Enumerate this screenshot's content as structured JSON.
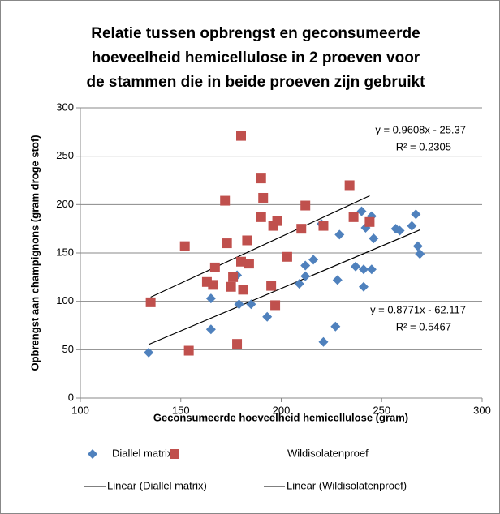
{
  "chart_data": {
    "type": "scatter",
    "title": [
      "Relatie tussen opbrengst en geconsumeerde",
      "hoeveelheid hemicellulose in 2 proeven voor",
      "de stammen die in beide proeven zijn gebruikt"
    ],
    "x_label": "Geconsumeerde hoeveelheid hemicellulose (gram)",
    "y_label": "Opbrengst aan champignons (gram droge stof)",
    "xlim": [
      100,
      300
    ],
    "xticks": [
      100,
      150,
      200,
      250,
      300
    ],
    "ylim": [
      0,
      300
    ],
    "yticks": [
      0,
      50,
      100,
      150,
      200,
      250,
      300
    ],
    "grid": true,
    "series": [
      {
        "name": "Diallel matrix",
        "color": "#4f81bd",
        "marker": "diamond",
        "x": [
          134,
          165,
          165,
          178,
          179,
          185,
          193,
          209,
          212,
          212,
          216,
          220,
          221,
          227,
          228,
          229,
          237,
          240,
          241,
          241,
          242,
          244,
          245,
          245,
          246,
          257,
          259,
          265,
          267,
          268,
          269
        ],
        "values": [
          47,
          71,
          103,
          127,
          97,
          97,
          84,
          118,
          126,
          137,
          143,
          180,
          58,
          74,
          122,
          169,
          136,
          193,
          115,
          133,
          176,
          182,
          133,
          188,
          165,
          175,
          173,
          178,
          190,
          157,
          149
        ]
      },
      {
        "name": "Wildisolatenproef",
        "color": "#c0504d",
        "marker": "square",
        "x": [
          135,
          152,
          154,
          163,
          166,
          167,
          172,
          173,
          175,
          176,
          178,
          180,
          180,
          181,
          183,
          184,
          190,
          190,
          191,
          195,
          196,
          197,
          198,
          203,
          210,
          212,
          221,
          234,
          236,
          244
        ],
        "values": [
          99,
          157,
          49,
          120,
          117,
          135,
          204,
          160,
          115,
          125,
          56,
          271,
          141,
          112,
          163,
          139,
          227,
          187,
          207,
          116,
          178,
          96,
          183,
          146,
          175,
          199,
          178,
          220,
          187,
          182
        ]
      }
    ],
    "trendlines": [
      {
        "name": "Linear (Diallel matrix)",
        "equation": "y = 0.8771x - 62.117",
        "r2": "R² = 0.5467",
        "slope": 0.8771,
        "intercept": -62.117
      },
      {
        "name": "Linear (Wildisolatenproef)",
        "equation": "y = 0.9608x - 25.37",
        "r2": "R² = 0.2305",
        "slope": 0.9608,
        "intercept": -25.37
      }
    ]
  }
}
